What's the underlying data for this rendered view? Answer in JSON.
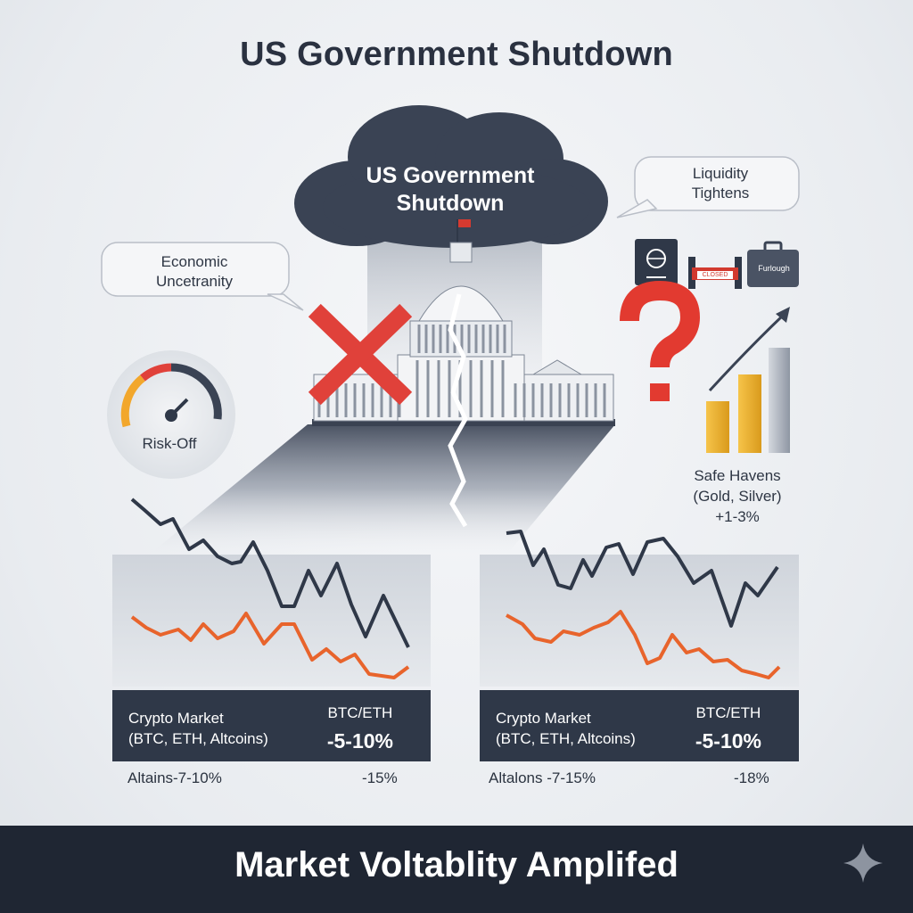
{
  "title": "US Government Shutdown",
  "cloud": {
    "line1": "US Government",
    "line2": "Shutdown"
  },
  "bubbles": {
    "economic": {
      "line1": "Economic",
      "line2": "Uncetranity"
    },
    "liquidity": {
      "line1": "Liquidity",
      "line2": "Tightens"
    }
  },
  "gauge": {
    "label": "Risk-Off"
  },
  "signs": {
    "closed": "CLOSED",
    "furlough": "Furlough"
  },
  "safe_havens": {
    "line1": "Safe Havens",
    "line2": "(Gold, Silver)",
    "line3": "+1-3%"
  },
  "panels": [
    {
      "category_line1": "Crypto Market",
      "category_line2": "(BTC, ETH, Altcoins)",
      "pair": "BTC/ETH",
      "pair_change": "-5-10%",
      "alt_label": "Altains-7-10%",
      "alt_change": "-15%"
    },
    {
      "category_line1": "Crypto Market",
      "category_line2": "(BTC, ETH, Altcoins)",
      "pair": "BTC/ETH",
      "pair_change": "-5-10%",
      "alt_label": "Altalons -7-15%",
      "alt_change": "-18%"
    }
  ],
  "footer": {
    "title": "Market Voltablity Amplifed"
  },
  "colors": {
    "dark_line": "#2f3848",
    "orange_line": "#e8642c",
    "cross_red": "#e0413a",
    "question_red": "#e23a30",
    "gold": "#f2b632",
    "footer_bg": "#1f2633"
  }
}
